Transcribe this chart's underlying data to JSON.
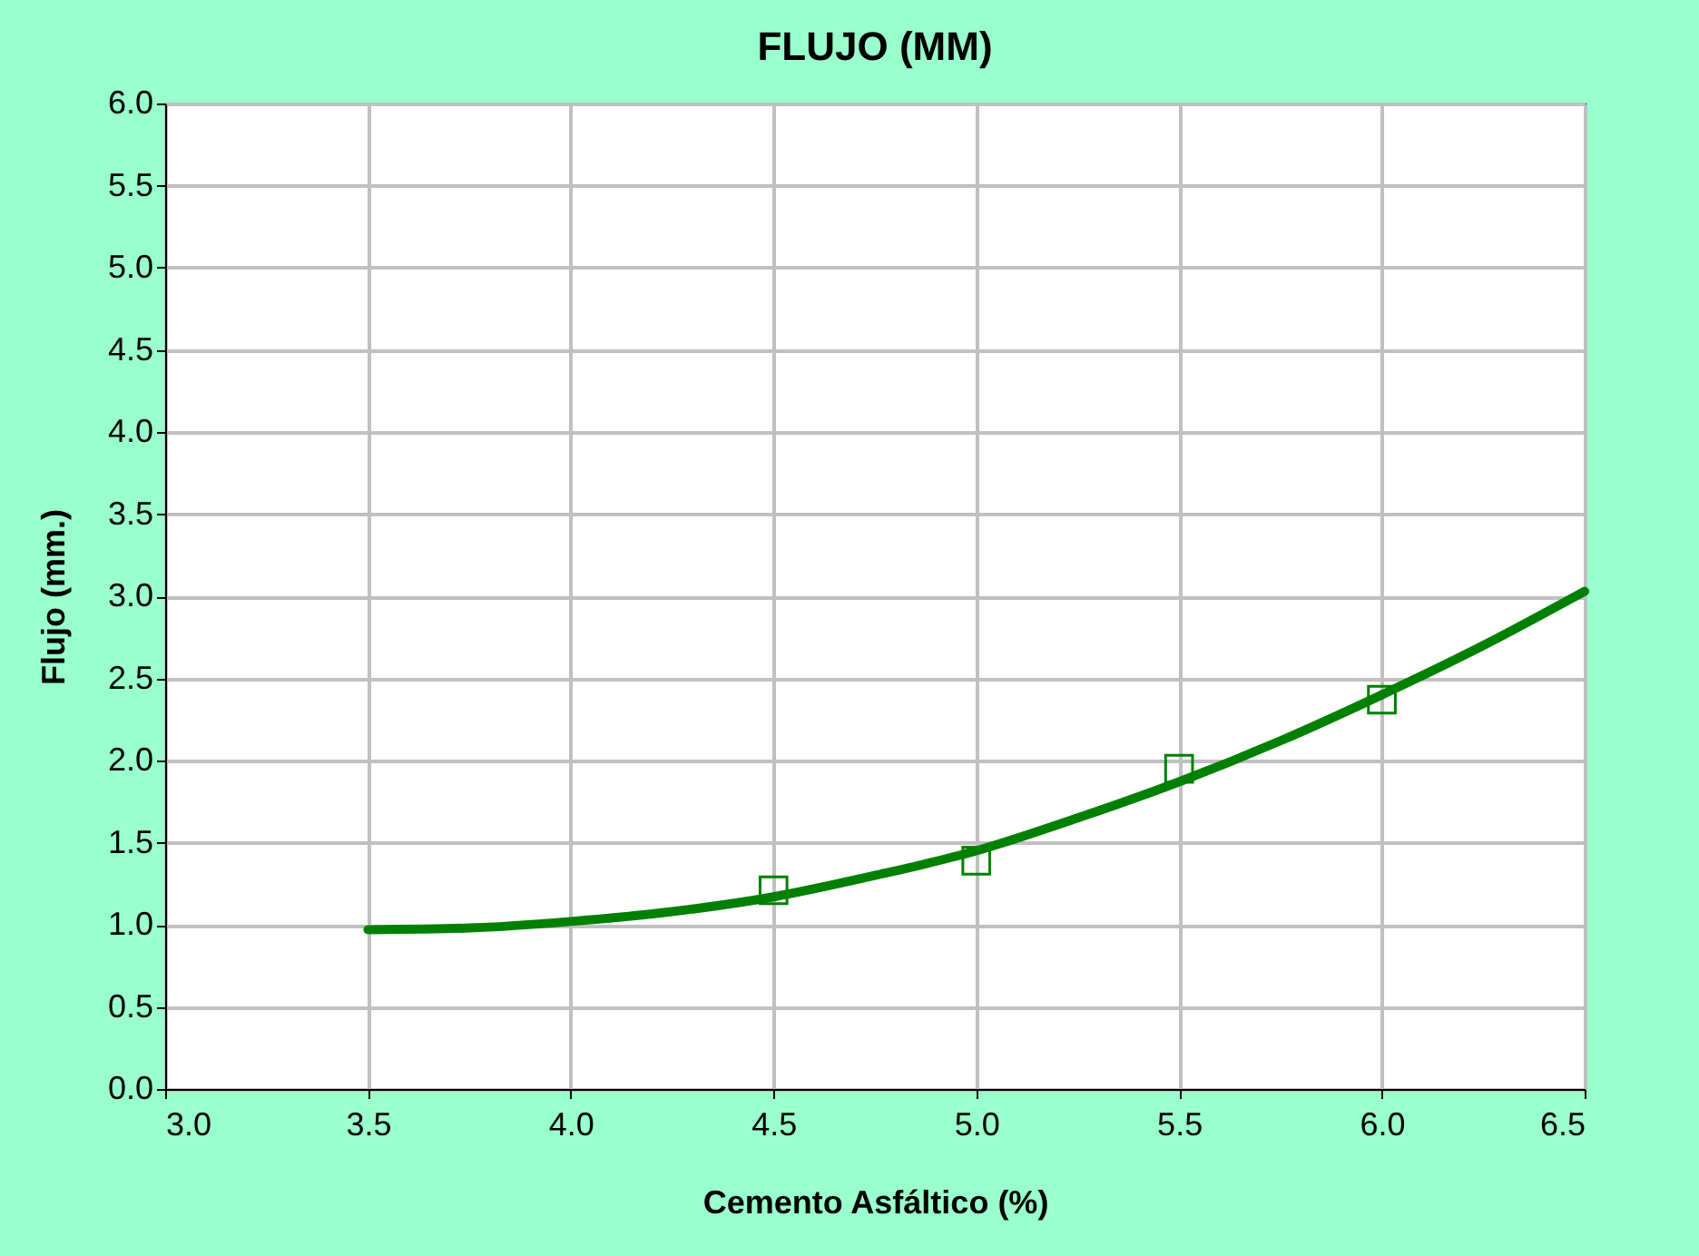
{
  "chart_data": {
    "type": "scatter",
    "title": "FLUJO (MM)",
    "xlabel": "Cemento Asfáltico (%)",
    "ylabel": "Flujo (mm.)",
    "series": [
      {
        "color": "#008000",
        "marker": "square",
        "x": [
          4.5,
          5.0,
          5.5,
          6.0
        ],
        "values": [
          1.21,
          1.39,
          1.95,
          2.37
        ]
      },
      {
        "type": "line",
        "color": "#008000",
        "marker": "none",
        "x": [
          3.5,
          3.75,
          4.0,
          4.25,
          4.5,
          4.75,
          5.0,
          5.25,
          5.5,
          5.75,
          6.0,
          6.25,
          6.5
        ],
        "values": [
          0.97,
          0.98,
          1.02,
          1.08,
          1.17,
          1.3,
          1.45,
          1.65,
          1.87,
          2.12,
          2.4,
          2.7,
          3.03
        ]
      }
    ],
    "xlim": [
      3.0,
      6.5
    ],
    "xticks": [
      {
        "value": 3.0,
        "label": "3.0"
      },
      {
        "value": 3.5,
        "label": "3.5"
      },
      {
        "value": 4.0,
        "label": "4.0"
      },
      {
        "value": 4.5,
        "label": "4.5"
      },
      {
        "value": 5.0,
        "label": "5.0"
      },
      {
        "value": 5.5,
        "label": "5.5"
      },
      {
        "value": 6.0,
        "label": "6.0"
      },
      {
        "value": 6.5,
        "label": "6.5"
      }
    ],
    "ylim": [
      0.0,
      6.0
    ],
    "yticks": [
      {
        "value": 0.0,
        "label": "0.0"
      },
      {
        "value": 0.5,
        "label": "0.5"
      },
      {
        "value": 1.0,
        "label": "1.0"
      },
      {
        "value": 1.5,
        "label": "1.5"
      },
      {
        "value": 2.0,
        "label": "2.0"
      },
      {
        "value": 2.5,
        "label": "2.5"
      },
      {
        "value": 3.0,
        "label": "3.0"
      },
      {
        "value": 3.5,
        "label": "3.5"
      },
      {
        "value": 4.0,
        "label": "4.0"
      },
      {
        "value": 4.5,
        "label": "4.5"
      },
      {
        "value": 5.0,
        "label": "5.0"
      },
      {
        "value": 5.5,
        "label": "5.5"
      },
      {
        "value": 6.0,
        "label": "6.0"
      }
    ],
    "grid": true,
    "legend": false
  }
}
